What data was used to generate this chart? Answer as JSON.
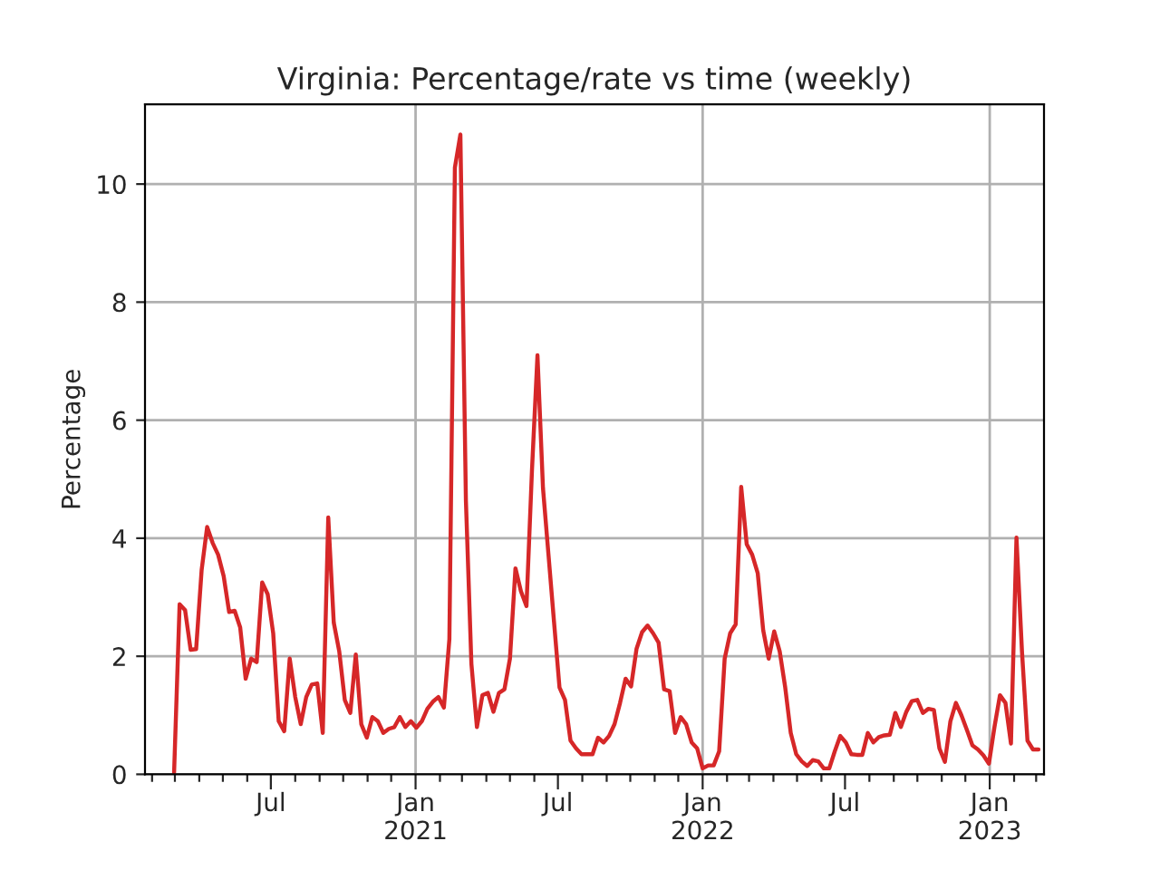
{
  "chart_data": {
    "type": "line",
    "title": "Virginia: Percentage/rate vs time (weekly)",
    "ylabel": "Percentage",
    "x": [
      "2020-02-29",
      "2020-03-07",
      "2020-03-14",
      "2020-03-21",
      "2020-03-28",
      "2020-04-04",
      "2020-04-11",
      "2020-04-18",
      "2020-04-25",
      "2020-05-02",
      "2020-05-09",
      "2020-05-16",
      "2020-05-23",
      "2020-05-30",
      "2020-06-06",
      "2020-06-13",
      "2020-06-20",
      "2020-06-27",
      "2020-07-04",
      "2020-07-11",
      "2020-07-18",
      "2020-07-25",
      "2020-08-01",
      "2020-08-08",
      "2020-08-15",
      "2020-08-22",
      "2020-08-29",
      "2020-09-05",
      "2020-09-12",
      "2020-09-19",
      "2020-09-26",
      "2020-10-03",
      "2020-10-10",
      "2020-10-17",
      "2020-10-24",
      "2020-10-31",
      "2020-11-07",
      "2020-11-14",
      "2020-11-21",
      "2020-11-28",
      "2020-12-05",
      "2020-12-12",
      "2020-12-19",
      "2020-12-26",
      "2021-01-02",
      "2021-01-09",
      "2021-01-16",
      "2021-01-23",
      "2021-01-30",
      "2021-02-06",
      "2021-02-13",
      "2021-02-20",
      "2021-02-27",
      "2021-03-06",
      "2021-03-13",
      "2021-03-20",
      "2021-03-27",
      "2021-04-03",
      "2021-04-10",
      "2021-04-17",
      "2021-04-24",
      "2021-05-01",
      "2021-05-08",
      "2021-05-15",
      "2021-05-22",
      "2021-05-29",
      "2021-06-05",
      "2021-06-12",
      "2021-06-19",
      "2021-06-26",
      "2021-07-03",
      "2021-07-10",
      "2021-07-17",
      "2021-07-24",
      "2021-07-31",
      "2021-08-07",
      "2021-08-14",
      "2021-08-21",
      "2021-08-28",
      "2021-09-04",
      "2021-09-11",
      "2021-09-18",
      "2021-09-25",
      "2021-10-02",
      "2021-10-09",
      "2021-10-16",
      "2021-10-23",
      "2021-10-30",
      "2021-11-06",
      "2021-11-13",
      "2021-11-20",
      "2021-11-27",
      "2021-12-04",
      "2021-12-11",
      "2021-12-18",
      "2021-12-25",
      "2022-01-01",
      "2022-01-08",
      "2022-01-15",
      "2022-01-22",
      "2022-01-29",
      "2022-02-05",
      "2022-02-12",
      "2022-02-19",
      "2022-02-26",
      "2022-03-05",
      "2022-03-12",
      "2022-03-19",
      "2022-03-26",
      "2022-04-02",
      "2022-04-09",
      "2022-04-16",
      "2022-04-23",
      "2022-04-30",
      "2022-05-07",
      "2022-05-14",
      "2022-05-21",
      "2022-05-28",
      "2022-06-04",
      "2022-06-11",
      "2022-06-18",
      "2022-06-25",
      "2022-07-02",
      "2022-07-09",
      "2022-07-16",
      "2022-07-23",
      "2022-07-30",
      "2022-08-06",
      "2022-08-13",
      "2022-08-20",
      "2022-08-27",
      "2022-09-03",
      "2022-09-10",
      "2022-09-17",
      "2022-09-24",
      "2022-10-01",
      "2022-10-08",
      "2022-10-15",
      "2022-10-22",
      "2022-10-29",
      "2022-11-05",
      "2022-11-12",
      "2022-11-19",
      "2022-11-26",
      "2022-12-03",
      "2022-12-10",
      "2022-12-17",
      "2022-12-24",
      "2022-12-31",
      "2023-01-07",
      "2023-01-14",
      "2023-01-21",
      "2023-01-28",
      "2023-02-04",
      "2023-02-11",
      "2023-02-18",
      "2023-02-25",
      "2023-03-04"
    ],
    "series": [
      {
        "color": "#d62728",
        "values": [
          0.03,
          2.88,
          2.78,
          2.11,
          2.12,
          3.46,
          4.19,
          3.92,
          3.72,
          3.36,
          2.75,
          2.77,
          2.49,
          1.62,
          1.96,
          1.9,
          3.25,
          3.05,
          2.39,
          0.9,
          0.73,
          1.96,
          1.31,
          0.85,
          1.31,
          1.52,
          1.54,
          0.7,
          4.35,
          2.57,
          2.08,
          1.26,
          1.04,
          2.03,
          0.85,
          0.62,
          0.97,
          0.9,
          0.7,
          0.77,
          0.8,
          0.97,
          0.8,
          0.9,
          0.79,
          0.9,
          1.11,
          1.23,
          1.31,
          1.13,
          2.29,
          10.28,
          10.84,
          4.64,
          1.87,
          0.8,
          1.34,
          1.38,
          1.06,
          1.38,
          1.44,
          1.96,
          3.49,
          3.1,
          2.85,
          5.15,
          7.1,
          4.85,
          3.72,
          2.59,
          1.47,
          1.26,
          0.57,
          0.44,
          0.34,
          0.34,
          0.34,
          0.62,
          0.54,
          0.65,
          0.85,
          1.21,
          1.62,
          1.49,
          2.13,
          2.41,
          2.52,
          2.39,
          2.23,
          1.44,
          1.41,
          0.7,
          0.97,
          0.85,
          0.54,
          0.44,
          0.1,
          0.15,
          0.15,
          0.39,
          1.96,
          2.39,
          2.54,
          4.87,
          3.9,
          3.72,
          3.41,
          2.44,
          1.96,
          2.42,
          2.08,
          1.47,
          0.7,
          0.34,
          0.22,
          0.14,
          0.24,
          0.22,
          0.1,
          0.1,
          0.39,
          0.65,
          0.54,
          0.34,
          0.33,
          0.33,
          0.7,
          0.54,
          0.63,
          0.66,
          0.67,
          1.04,
          0.8,
          1.06,
          1.24,
          1.26,
          1.04,
          1.11,
          1.09,
          0.44,
          0.21,
          0.9,
          1.21,
          1.0,
          0.75,
          0.49,
          0.42,
          0.32,
          0.18,
          0.8,
          1.34,
          1.21,
          0.52,
          4.01,
          2.08,
          0.57,
          0.42,
          0.42
        ]
      }
    ],
    "xlim": [
      "2020-01-23",
      "2023-03-11"
    ],
    "xticks": [
      {
        "value": "2020-02-01",
        "label": null
      },
      {
        "value": "2020-03-01",
        "label": null
      },
      {
        "value": "2020-04-01",
        "label": null
      },
      {
        "value": "2020-05-01",
        "label": null
      },
      {
        "value": "2020-06-01",
        "label": null
      },
      {
        "value": "2020-07-01",
        "label": "Jul"
      },
      {
        "value": "2020-08-01",
        "label": null
      },
      {
        "value": "2020-09-01",
        "label": null
      },
      {
        "value": "2020-10-01",
        "label": null
      },
      {
        "value": "2020-11-01",
        "label": null
      },
      {
        "value": "2020-12-01",
        "label": null
      },
      {
        "value": "2021-01-01",
        "label": "Jan\n2021"
      },
      {
        "value": "2021-02-01",
        "label": null
      },
      {
        "value": "2021-03-01",
        "label": null
      },
      {
        "value": "2021-04-01",
        "label": null
      },
      {
        "value": "2021-05-01",
        "label": null
      },
      {
        "value": "2021-06-01",
        "label": null
      },
      {
        "value": "2021-07-01",
        "label": "Jul"
      },
      {
        "value": "2021-08-01",
        "label": null
      },
      {
        "value": "2021-09-01",
        "label": null
      },
      {
        "value": "2021-10-01",
        "label": null
      },
      {
        "value": "2021-11-01",
        "label": null
      },
      {
        "value": "2021-12-01",
        "label": null
      },
      {
        "value": "2022-01-01",
        "label": "Jan\n2022"
      },
      {
        "value": "2022-02-01",
        "label": null
      },
      {
        "value": "2022-03-01",
        "label": null
      },
      {
        "value": "2022-04-01",
        "label": null
      },
      {
        "value": "2022-05-01",
        "label": null
      },
      {
        "value": "2022-06-01",
        "label": null
      },
      {
        "value": "2022-07-01",
        "label": "Jul"
      },
      {
        "value": "2022-08-01",
        "label": null
      },
      {
        "value": "2022-09-01",
        "label": null
      },
      {
        "value": "2022-10-01",
        "label": null
      },
      {
        "value": "2022-11-01",
        "label": null
      },
      {
        "value": "2022-12-01",
        "label": null
      },
      {
        "value": "2023-01-01",
        "label": "Jan\n2023"
      },
      {
        "value": "2023-02-01",
        "label": null
      },
      {
        "value": "2023-03-01",
        "label": null
      }
    ],
    "ylim": [
      0,
      11.35
    ],
    "yticks": [
      0,
      2,
      4,
      6,
      8,
      10
    ],
    "grid": true,
    "line_style": "solid",
    "marker": "none"
  }
}
